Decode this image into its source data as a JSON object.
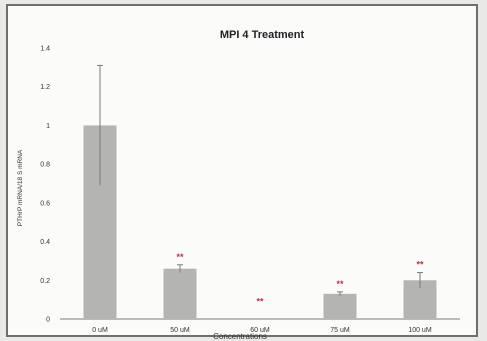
{
  "chart_data": {
    "type": "bar",
    "title": "MPI 4 Treatment",
    "xlabel": "Concentrations",
    "ylabel": "PTHrP mRNA/18 S mRNA",
    "categories": [
      "0 uM",
      "50 uM",
      "60 uM",
      "75 uM",
      "100 uM"
    ],
    "values": [
      1.0,
      0.26,
      0.0,
      0.13,
      0.2
    ],
    "errors": [
      0.31,
      0.02,
      0.0,
      0.01,
      0.04
    ],
    "significance": [
      "",
      "**",
      "**",
      "**",
      "**"
    ],
    "ylim": [
      0,
      1.4
    ],
    "yticks": [
      "0",
      "0.2",
      "0.4",
      "0.6",
      "0.8",
      "1",
      "1.2",
      "1.4"
    ],
    "grid": false,
    "colors": {
      "bar": "#b4b4b2",
      "error": "#7a7a7a",
      "significance": "#c8323c"
    }
  }
}
